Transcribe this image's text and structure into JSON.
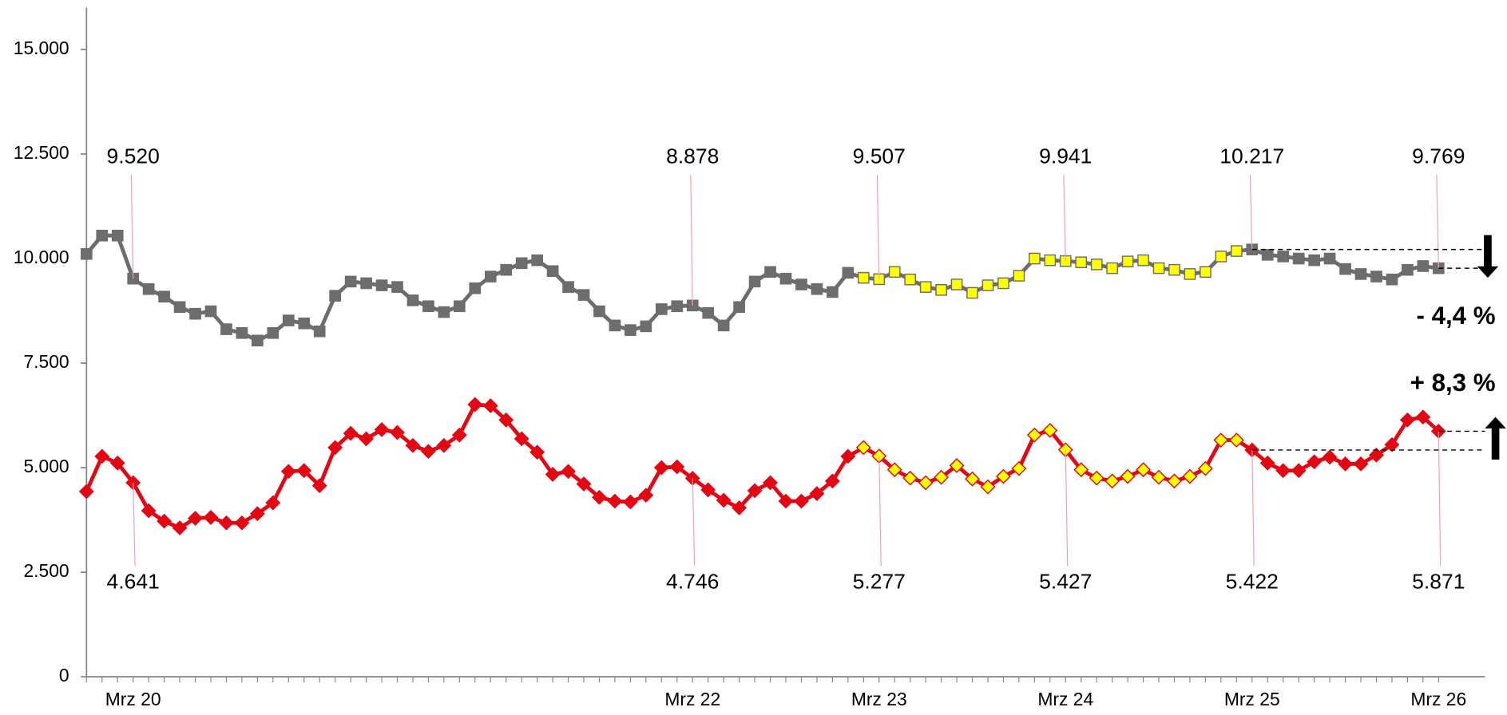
{
  "chart_data": {
    "type": "line",
    "categories": [
      null,
      null,
      null,
      "Mrz 20",
      null,
      null,
      null,
      null,
      null,
      null,
      null,
      null,
      null,
      null,
      null,
      null,
      null,
      null,
      null,
      null,
      null,
      null,
      null,
      null,
      null,
      null,
      null,
      null,
      null,
      null,
      null,
      null,
      null,
      null,
      null,
      null,
      null,
      null,
      null,
      "Mrz 22",
      null,
      null,
      null,
      null,
      null,
      null,
      null,
      null,
      null,
      null,
      null,
      "Mrz 23",
      null,
      null,
      null,
      null,
      null,
      null,
      null,
      null,
      null,
      null,
      null,
      "Mrz 24",
      null,
      null,
      null,
      null,
      null,
      null,
      null,
      null,
      null,
      null,
      null,
      "Mrz 25",
      null,
      null,
      null,
      null,
      null,
      null,
      null,
      null,
      null,
      null,
      null,
      "Mrz 26"
    ],
    "series": [
      {
        "color": "#6d6d6d",
        "marker": "square",
        "values": [
          10110,
          10550,
          10550,
          9520,
          9270,
          9090,
          8840,
          8680,
          8740,
          8310,
          8220,
          8040,
          8220,
          8520,
          8450,
          8260,
          9110,
          9450,
          9410,
          9360,
          9320,
          9000,
          8860,
          8720,
          8860,
          9290,
          9570,
          9730,
          9890,
          9960,
          9700,
          9320,
          9130,
          8740,
          8400,
          8290,
          8380,
          8790,
          8860,
          8878,
          8700,
          8400,
          8840,
          9450,
          9680,
          9520,
          9380,
          9270,
          9200,
          9660,
          9540,
          9507,
          9680,
          9500,
          9320,
          9250,
          9380,
          9180,
          9360,
          9410,
          9590,
          10000,
          9960,
          9941,
          9910,
          9860,
          9770,
          9930,
          9960,
          9770,
          9730,
          9630,
          9680,
          10050,
          10180,
          10217,
          10090,
          10050,
          10000,
          9960,
          10000,
          9750,
          9630,
          9570,
          9500,
          9730,
          9820,
          9769
        ],
        "value_labels": [
          null,
          null,
          null,
          "9.520",
          null,
          null,
          null,
          null,
          null,
          null,
          null,
          null,
          null,
          null,
          null,
          null,
          null,
          null,
          null,
          null,
          null,
          null,
          null,
          null,
          null,
          null,
          null,
          null,
          null,
          null,
          null,
          null,
          null,
          null,
          null,
          null,
          null,
          null,
          null,
          "8.878",
          null,
          null,
          null,
          null,
          null,
          null,
          null,
          null,
          null,
          null,
          null,
          "9.507",
          null,
          null,
          null,
          null,
          null,
          null,
          null,
          null,
          null,
          null,
          null,
          "9.941",
          null,
          null,
          null,
          null,
          null,
          null,
          null,
          null,
          null,
          null,
          null,
          "10.217",
          null,
          null,
          null,
          null,
          null,
          null,
          null,
          null,
          null,
          null,
          null,
          "9.769"
        ],
        "marker_colors": [
          "#6d6d6d",
          "#6d6d6d",
          "#6d6d6d",
          "#6d6d6d",
          "#6d6d6d",
          "#6d6d6d",
          "#6d6d6d",
          "#6d6d6d",
          "#6d6d6d",
          "#6d6d6d",
          "#6d6d6d",
          "#6d6d6d",
          "#6d6d6d",
          "#6d6d6d",
          "#6d6d6d",
          "#6d6d6d",
          "#6d6d6d",
          "#6d6d6d",
          "#6d6d6d",
          "#6d6d6d",
          "#6d6d6d",
          "#6d6d6d",
          "#6d6d6d",
          "#6d6d6d",
          "#6d6d6d",
          "#6d6d6d",
          "#6d6d6d",
          "#6d6d6d",
          "#6d6d6d",
          "#6d6d6d",
          "#6d6d6d",
          "#6d6d6d",
          "#6d6d6d",
          "#6d6d6d",
          "#6d6d6d",
          "#6d6d6d",
          "#6d6d6d",
          "#6d6d6d",
          "#6d6d6d",
          "#6d6d6d",
          "#6d6d6d",
          "#6d6d6d",
          "#6d6d6d",
          "#6d6d6d",
          "#6d6d6d",
          "#6d6d6d",
          "#6d6d6d",
          "#6d6d6d",
          "#6d6d6d",
          "#6d6d6d",
          "#ffff00",
          "#ffff00",
          "#ffff00",
          "#ffff00",
          "#ffff00",
          "#ffff00",
          "#ffff00",
          "#ffff00",
          "#ffff00",
          "#ffff00",
          "#ffff00",
          "#ffff00",
          "#ffff00",
          "#ffff00",
          "#ffff00",
          "#ffff00",
          "#ffff00",
          "#ffff00",
          "#ffff00",
          "#ffff00",
          "#ffff00",
          "#ffff00",
          "#ffff00",
          "#ffff00",
          "#ffff00",
          "#6d6d6d",
          "#6d6d6d",
          "#6d6d6d",
          "#6d6d6d",
          "#6d6d6d",
          "#6d6d6d",
          "#6d6d6d",
          "#6d6d6d",
          "#6d6d6d",
          "#6d6d6d",
          "#6d6d6d",
          "#6d6d6d",
          "#6d6d6d"
        ]
      },
      {
        "color": "#e30613",
        "marker": "diamond",
        "values": [
          4430,
          5270,
          5110,
          4641,
          3970,
          3720,
          3560,
          3790,
          3810,
          3680,
          3680,
          3900,
          4160,
          4910,
          4930,
          4570,
          5480,
          5820,
          5690,
          5910,
          5840,
          5530,
          5390,
          5530,
          5780,
          6510,
          6480,
          6140,
          5690,
          5370,
          4840,
          4910,
          4610,
          4290,
          4200,
          4180,
          4340,
          5000,
          5020,
          4746,
          4470,
          4220,
          4040,
          4450,
          4640,
          4200,
          4200,
          4380,
          4680,
          5270,
          5480,
          5277,
          4950,
          4750,
          4640,
          4770,
          5050,
          4730,
          4540,
          4790,
          4980,
          5780,
          5890,
          5427,
          4950,
          4750,
          4680,
          4790,
          4950,
          4770,
          4680,
          4790,
          4980,
          5660,
          5660,
          5422,
          5110,
          4930,
          4930,
          5140,
          5250,
          5090,
          5090,
          5300,
          5550,
          6140,
          6210,
          5871
        ],
        "value_labels": [
          null,
          null,
          null,
          "4.641",
          null,
          null,
          null,
          null,
          null,
          null,
          null,
          null,
          null,
          null,
          null,
          null,
          null,
          null,
          null,
          null,
          null,
          null,
          null,
          null,
          null,
          null,
          null,
          null,
          null,
          null,
          null,
          null,
          null,
          null,
          null,
          null,
          null,
          null,
          null,
          "4.746",
          null,
          null,
          null,
          null,
          null,
          null,
          null,
          null,
          null,
          null,
          null,
          "5.277",
          null,
          null,
          null,
          null,
          null,
          null,
          null,
          null,
          null,
          null,
          null,
          "5.427",
          null,
          null,
          null,
          null,
          null,
          null,
          null,
          null,
          null,
          null,
          null,
          "5.422",
          null,
          null,
          null,
          null,
          null,
          null,
          null,
          null,
          null,
          null,
          null,
          "5.871"
        ],
        "marker_colors": [
          "#e30613",
          "#e30613",
          "#e30613",
          "#e30613",
          "#e30613",
          "#e30613",
          "#e30613",
          "#e30613",
          "#e30613",
          "#e30613",
          "#e30613",
          "#e30613",
          "#e30613",
          "#e30613",
          "#e30613",
          "#e30613",
          "#e30613",
          "#e30613",
          "#e30613",
          "#e30613",
          "#e30613",
          "#e30613",
          "#e30613",
          "#e30613",
          "#e30613",
          "#e30613",
          "#e30613",
          "#e30613",
          "#e30613",
          "#e30613",
          "#e30613",
          "#e30613",
          "#e30613",
          "#e30613",
          "#e30613",
          "#e30613",
          "#e30613",
          "#e30613",
          "#e30613",
          "#e30613",
          "#e30613",
          "#e30613",
          "#e30613",
          "#e30613",
          "#e30613",
          "#e30613",
          "#e30613",
          "#e30613",
          "#e30613",
          "#e30613",
          "#ffff00",
          "#ffff00",
          "#ffff00",
          "#ffff00",
          "#ffff00",
          "#ffff00",
          "#ffff00",
          "#ffff00",
          "#ffff00",
          "#ffff00",
          "#ffff00",
          "#ffff00",
          "#ffff00",
          "#ffff00",
          "#ffff00",
          "#ffff00",
          "#ffff00",
          "#ffff00",
          "#ffff00",
          "#ffff00",
          "#ffff00",
          "#ffff00",
          "#ffff00",
          "#ffff00",
          "#ffff00",
          "#e30613",
          "#e30613",
          "#e30613",
          "#e30613",
          "#e30613",
          "#e30613",
          "#e30613",
          "#e30613",
          "#e30613",
          "#e30613",
          "#e30613",
          "#e30613",
          "#e30613"
        ]
      }
    ],
    "ylim": [
      0,
      16000
    ],
    "yticks": [
      {
        "value": 0,
        "label": "0"
      },
      {
        "value": 2500,
        "label": "2.500"
      },
      {
        "value": 5000,
        "label": "5.000"
      },
      {
        "value": 7500,
        "label": "7.500"
      },
      {
        "value": 10000,
        "label": "10.000"
      },
      {
        "value": 12500,
        "label": "12.500"
      },
      {
        "value": 15000,
        "label": "15.000"
      }
    ],
    "annotations": [
      {
        "text": "- 4,4 %",
        "direction": "down"
      },
      {
        "text": "+ 8,3 %",
        "direction": "up"
      }
    ]
  }
}
